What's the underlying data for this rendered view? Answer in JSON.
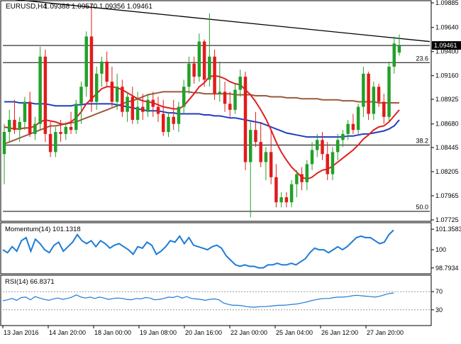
{
  "colors": {
    "bull": "#22a02a",
    "bear": "#e21b1b",
    "sma_fast": "#e02020",
    "sma_mid": "#1f3fbf",
    "sma_slow": "#9a5a3a",
    "indicator": "#1e7bd6",
    "grid": "#000000",
    "trend": "#000000"
  },
  "header": {
    "symbol": "EURUSD,H4",
    "ohlc": "1.09388 1.09570 1.09356 1.09461"
  },
  "chart_data": [
    {
      "type": "candlestick",
      "title": "EURUSD,H4  1.09388 1.09570 1.09356 1.09461",
      "ylim": [
        1.07725,
        1.09885
      ],
      "y_ticks": [
        "1.09885",
        "1.09640",
        "1.09400",
        "1.09160",
        "1.08925",
        "1.08680",
        "1.08445",
        "1.08205",
        "1.07965",
        "1.07725"
      ],
      "last_price": "1.09461",
      "x_labels": [
        "13 Jan 2016",
        "14 Jan 20:00",
        "18 Jan 00:00",
        "19 Jan 08:00",
        "20 Jan 16:00",
        "22 Jan 00:00",
        "25 Jan 04:00",
        "26 Jan 12:00",
        "27 Jan 20:00"
      ],
      "fib_levels": [
        {
          "label": "23.6",
          "value": 1.0929
        },
        {
          "label": "38.2",
          "value": 1.0847
        },
        {
          "label": "50.0",
          "value": 1.0781
        }
      ],
      "trendline": {
        "start": 1.0993,
        "end": 1.095
      },
      "horizontal_line": 1.09461,
      "candles": [
        {
          "o": 1.0838,
          "h": 1.0868,
          "l": 1.0808,
          "c": 1.086
        },
        {
          "o": 1.086,
          "h": 1.0882,
          "l": 1.085,
          "c": 1.0872
        },
        {
          "o": 1.0872,
          "h": 1.0892,
          "l": 1.0858,
          "c": 1.0862
        },
        {
          "o": 1.0862,
          "h": 1.0875,
          "l": 1.085,
          "c": 1.087
        },
        {
          "o": 1.087,
          "h": 1.0895,
          "l": 1.0862,
          "c": 1.089
        },
        {
          "o": 1.089,
          "h": 1.09,
          "l": 1.0855,
          "c": 1.0858
        },
        {
          "o": 1.0858,
          "h": 1.0875,
          "l": 1.0852,
          "c": 1.0868
        },
        {
          "o": 1.0868,
          "h": 1.0945,
          "l": 1.0862,
          "c": 1.0935
        },
        {
          "o": 1.0935,
          "h": 1.0942,
          "l": 1.085,
          "c": 1.0858
        },
        {
          "o": 1.0858,
          "h": 1.087,
          "l": 1.0835,
          "c": 1.084
        },
        {
          "o": 1.084,
          "h": 1.0865,
          "l": 1.0835,
          "c": 1.086
        },
        {
          "o": 1.086,
          "h": 1.0872,
          "l": 1.085,
          "c": 1.0858
        },
        {
          "o": 1.0858,
          "h": 1.087,
          "l": 1.0852,
          "c": 1.0865
        },
        {
          "o": 1.0865,
          "h": 1.088,
          "l": 1.0858,
          "c": 1.0862
        },
        {
          "o": 1.0862,
          "h": 1.0892,
          "l": 1.0858,
          "c": 1.0888
        },
        {
          "o": 1.0888,
          "h": 1.091,
          "l": 1.0868,
          "c": 1.0905
        },
        {
          "o": 1.0905,
          "h": 1.096,
          "l": 1.0895,
          "c": 1.0955
        },
        {
          "o": 1.0955,
          "h": 1.0988,
          "l": 1.088,
          "c": 1.089
        },
        {
          "o": 1.089,
          "h": 1.0925,
          "l": 1.0882,
          "c": 1.0918
        },
        {
          "o": 1.0918,
          "h": 1.0935,
          "l": 1.0905,
          "c": 1.093
        },
        {
          "o": 1.093,
          "h": 1.094,
          "l": 1.0905,
          "c": 1.091
        },
        {
          "o": 1.091,
          "h": 1.0925,
          "l": 1.0885,
          "c": 1.089
        },
        {
          "o": 1.089,
          "h": 1.0918,
          "l": 1.0882,
          "c": 1.0905
        },
        {
          "o": 1.0905,
          "h": 1.0912,
          "l": 1.0875,
          "c": 1.088
        },
        {
          "o": 1.088,
          "h": 1.09,
          "l": 1.087,
          "c": 1.0895
        },
        {
          "o": 1.0895,
          "h": 1.0905,
          "l": 1.0868,
          "c": 1.0872
        },
        {
          "o": 1.0872,
          "h": 1.09,
          "l": 1.0868,
          "c": 1.0885
        },
        {
          "o": 1.0885,
          "h": 1.0898,
          "l": 1.0872,
          "c": 1.088
        },
        {
          "o": 1.088,
          "h": 1.0898,
          "l": 1.0875,
          "c": 1.0892
        },
        {
          "o": 1.0892,
          "h": 1.09,
          "l": 1.0875,
          "c": 1.0885
        },
        {
          "o": 1.0885,
          "h": 1.0895,
          "l": 1.087,
          "c": 1.0878
        },
        {
          "o": 1.0878,
          "h": 1.0892,
          "l": 1.0856,
          "c": 1.086
        },
        {
          "o": 1.086,
          "h": 1.088,
          "l": 1.0855,
          "c": 1.0875
        },
        {
          "o": 1.0875,
          "h": 1.0892,
          "l": 1.0862,
          "c": 1.0868
        },
        {
          "o": 1.0868,
          "h": 1.089,
          "l": 1.086,
          "c": 1.0885
        },
        {
          "o": 1.0885,
          "h": 1.0912,
          "l": 1.0878,
          "c": 1.0905
        },
        {
          "o": 1.0905,
          "h": 1.0935,
          "l": 1.0898,
          "c": 1.0928
        },
        {
          "o": 1.0928,
          "h": 1.0935,
          "l": 1.0908,
          "c": 1.0915
        },
        {
          "o": 1.0915,
          "h": 1.0958,
          "l": 1.091,
          "c": 1.095
        },
        {
          "o": 1.095,
          "h": 1.0952,
          "l": 1.0905,
          "c": 1.0912
        },
        {
          "o": 1.0912,
          "h": 1.0978,
          "l": 1.0905,
          "c": 1.0935
        },
        {
          "o": 1.0935,
          "h": 1.0942,
          "l": 1.0892,
          "c": 1.0898
        },
        {
          "o": 1.0898,
          "h": 1.093,
          "l": 1.089,
          "c": 1.09
        },
        {
          "o": 1.09,
          "h": 1.091,
          "l": 1.088,
          "c": 1.0888
        },
        {
          "o": 1.0888,
          "h": 1.09,
          "l": 1.0875,
          "c": 1.0882
        },
        {
          "o": 1.0882,
          "h": 1.0908,
          "l": 1.0878,
          "c": 1.0902
        },
        {
          "o": 1.0902,
          "h": 1.0922,
          "l": 1.0895,
          "c": 1.0915
        },
        {
          "o": 1.0915,
          "h": 1.092,
          "l": 1.0822,
          "c": 1.083
        },
        {
          "o": 1.083,
          "h": 1.087,
          "l": 1.0775,
          "c": 1.0862
        },
        {
          "o": 1.0862,
          "h": 1.088,
          "l": 1.0845,
          "c": 1.085
        },
        {
          "o": 1.085,
          "h": 1.087,
          "l": 1.0825,
          "c": 1.083
        },
        {
          "o": 1.083,
          "h": 1.0845,
          "l": 1.0812,
          "c": 1.084
        },
        {
          "o": 1.084,
          "h": 1.0862,
          "l": 1.0808,
          "c": 1.0815
        },
        {
          "o": 1.0815,
          "h": 1.0828,
          "l": 1.0785,
          "c": 1.079
        },
        {
          "o": 1.079,
          "h": 1.08,
          "l": 1.0785,
          "c": 1.0795
        },
        {
          "o": 1.0795,
          "h": 1.08,
          "l": 1.0785,
          "c": 1.079
        },
        {
          "o": 1.079,
          "h": 1.0812,
          "l": 1.0785,
          "c": 1.0808
        },
        {
          "o": 1.0808,
          "h": 1.0822,
          "l": 1.0795,
          "c": 1.0818
        },
        {
          "o": 1.0818,
          "h": 1.0825,
          "l": 1.0802,
          "c": 1.081
        },
        {
          "o": 1.081,
          "h": 1.0832,
          "l": 1.0802,
          "c": 1.0828
        },
        {
          "o": 1.0828,
          "h": 1.085,
          "l": 1.0822,
          "c": 1.0842
        },
        {
          "o": 1.0842,
          "h": 1.0858,
          "l": 1.0835,
          "c": 1.0852
        },
        {
          "o": 1.0852,
          "h": 1.086,
          "l": 1.0832,
          "c": 1.0838
        },
        {
          "o": 1.0838,
          "h": 1.085,
          "l": 1.0812,
          "c": 1.0818
        },
        {
          "o": 1.0818,
          "h": 1.0845,
          "l": 1.0812,
          "c": 1.084
        },
        {
          "o": 1.084,
          "h": 1.0858,
          "l": 1.0832,
          "c": 1.0852
        },
        {
          "o": 1.0852,
          "h": 1.0862,
          "l": 1.0845,
          "c": 1.0858
        },
        {
          "o": 1.0858,
          "h": 1.0872,
          "l": 1.0852,
          "c": 1.0868
        },
        {
          "o": 1.0868,
          "h": 1.0878,
          "l": 1.0858,
          "c": 1.0862
        },
        {
          "o": 1.0862,
          "h": 1.0888,
          "l": 1.0858,
          "c": 1.0885
        },
        {
          "o": 1.0885,
          "h": 1.0925,
          "l": 1.0875,
          "c": 1.0918
        },
        {
          "o": 1.0918,
          "h": 1.092,
          "l": 1.0872,
          "c": 1.0878
        },
        {
          "o": 1.0878,
          "h": 1.091,
          "l": 1.0872,
          "c": 1.0905
        },
        {
          "o": 1.0905,
          "h": 1.0908,
          "l": 1.0885,
          "c": 1.089
        },
        {
          "o": 1.089,
          "h": 1.0898,
          "l": 1.0868,
          "c": 1.0875
        },
        {
          "o": 1.0875,
          "h": 1.093,
          "l": 1.087,
          "c": 1.0925
        },
        {
          "o": 1.0925,
          "h": 1.0955,
          "l": 1.0918,
          "c": 1.0948
        },
        {
          "o": 1.0939,
          "h": 1.0957,
          "l": 1.0936,
          "c": 1.0946
        }
      ],
      "sma_fast": [
        1.0865,
        1.0864,
        1.0863,
        1.0863,
        1.0864,
        1.0864,
        1.0866,
        1.087,
        1.0872,
        1.0871,
        1.087,
        1.0868,
        1.0868,
        1.087,
        1.0874,
        1.088,
        1.0888,
        1.0893,
        1.0898,
        1.0903,
        1.0905,
        1.0905,
        1.0904,
        1.0902,
        1.0899,
        1.0896,
        1.0893,
        1.0891,
        1.089,
        1.0889,
        1.0887,
        1.0885,
        1.0884,
        1.0883,
        1.0883,
        1.0886,
        1.0892,
        1.0898,
        1.0905,
        1.0909,
        1.0915,
        1.0916,
        1.0915,
        1.0913,
        1.091,
        1.0908,
        1.0907,
        1.0902,
        1.0897,
        1.089,
        1.0882,
        1.0873,
        1.0862,
        1.085,
        1.084,
        1.0832,
        1.0825,
        1.082,
        1.0815,
        1.0813,
        1.0815,
        1.0819,
        1.0822,
        1.0823,
        1.0826,
        1.083,
        1.0834,
        1.0838,
        1.0842,
        1.0847,
        1.0853,
        1.0857,
        1.0862,
        1.0865,
        1.0866,
        1.087,
        1.0876,
        1.0882
      ],
      "sma_mid": [
        1.089,
        1.089,
        1.089,
        1.0889,
        1.0889,
        1.0889,
        1.0888,
        1.0888,
        1.0888,
        1.0887,
        1.0886,
        1.0886,
        1.0886,
        1.0886,
        1.0887,
        1.0887,
        1.0888,
        1.0888,
        1.0888,
        1.0888,
        1.0888,
        1.0888,
        1.0887,
        1.0886,
        1.0885,
        1.0884,
        1.0883,
        1.0882,
        1.0881,
        1.0881,
        1.0881,
        1.088,
        1.0879,
        1.0879,
        1.0878,
        1.0878,
        1.0878,
        1.0878,
        1.0878,
        1.0877,
        1.0877,
        1.0876,
        1.0876,
        1.0875,
        1.0874,
        1.0874,
        1.0873,
        1.0872,
        1.0871,
        1.087,
        1.0869,
        1.0867,
        1.0865,
        1.0863,
        1.0861,
        1.0859,
        1.0858,
        1.0857,
        1.0856,
        1.0855,
        1.0855,
        1.0855,
        1.0855,
        1.0855,
        1.0855,
        1.0855,
        1.0855,
        1.0856,
        1.0856,
        1.0857,
        1.0858,
        1.0858,
        1.0859,
        1.086,
        1.0861,
        1.0863,
        1.0866,
        1.0872
      ],
      "sma_slow": [
        1.0848,
        1.085,
        1.0852,
        1.0854,
        1.0856,
        1.0858,
        1.086,
        1.0862,
        1.0864,
        1.0866,
        1.0866,
        1.0867,
        1.0868,
        1.0869,
        1.087,
        1.0872,
        1.0874,
        1.0876,
        1.0878,
        1.088,
        1.0882,
        1.0884,
        1.0886,
        1.0888,
        1.089,
        1.0891,
        1.0893,
        1.0895,
        1.0897,
        1.0898,
        1.0899,
        1.09,
        1.09,
        1.09,
        1.09,
        1.09,
        1.09,
        1.0899,
        1.0899,
        1.0898,
        1.0898,
        1.0898,
        1.0898,
        1.0898,
        1.0898,
        1.0897,
        1.0897,
        1.0897,
        1.0897,
        1.0896,
        1.0896,
        1.0896,
        1.0895,
        1.0895,
        1.0895,
        1.0894,
        1.0894,
        1.0894,
        1.0893,
        1.0893,
        1.0893,
        1.0893,
        1.0892,
        1.0892,
        1.0892,
        1.0892,
        1.0891,
        1.0891,
        1.0891,
        1.089,
        1.089,
        1.089,
        1.089,
        1.0889,
        1.0889,
        1.0889,
        1.0889,
        1.0889
      ]
    },
    {
      "type": "line",
      "title": "Momentum(14) 101.1318",
      "ylim": [
        98.5,
        101.6
      ],
      "y_ticks": [
        "101.3583",
        "100",
        "98.7934"
      ],
      "reference": 100,
      "values": [
        100.0,
        99.8,
        100.2,
        99.9,
        100.6,
        100.8,
        99.9,
        100.7,
        100.4,
        100.0,
        99.8,
        100.3,
        100.5,
        99.9,
        100.2,
        100.5,
        101.0,
        100.6,
        100.4,
        100.6,
        100.2,
        100.6,
        100.4,
        100.1,
        100.3,
        100.4,
        100.2,
        100.0,
        99.7,
        100.2,
        100.1,
        100.5,
        100.3,
        99.7,
        99.9,
        100.2,
        100.6,
        100.5,
        100.9,
        100.4,
        100.8,
        100.3,
        100.2,
        100.1,
        100.0,
        100.2,
        100.3,
        100.1,
        99.6,
        99.3,
        99.0,
        98.9,
        99.0,
        98.9,
        98.9,
        98.8,
        98.8,
        99.0,
        99.0,
        99.1,
        99.0,
        99.0,
        99.1,
        99.0,
        99.2,
        99.4,
        99.8,
        100.1,
        100.0,
        100.0,
        99.8,
        100.0,
        100.2,
        100.0,
        100.2,
        100.5,
        100.8,
        100.9,
        100.8,
        100.8,
        100.6,
        100.4,
        100.5,
        101.0,
        101.3
      ]
    },
    {
      "type": "line",
      "title": "RSI(14) 66.8371",
      "ylim": [
        0,
        100
      ],
      "y_ticks": [
        "70",
        "30"
      ],
      "values": [
        50,
        52,
        55,
        51,
        57,
        58,
        52,
        59,
        56,
        53,
        51,
        54,
        56,
        53,
        55,
        58,
        63,
        58,
        56,
        58,
        55,
        58,
        56,
        53,
        55,
        56,
        55,
        53,
        52,
        55,
        54,
        57,
        56,
        52,
        53,
        55,
        58,
        57,
        60,
        56,
        59,
        55,
        54,
        53,
        51,
        53,
        54,
        52,
        45,
        42,
        40,
        40,
        39,
        37,
        36,
        36,
        37,
        37,
        38,
        39,
        40,
        40,
        41,
        42,
        43,
        45,
        47,
        50,
        52,
        54,
        55,
        55,
        57,
        58,
        58,
        59,
        61,
        62,
        61,
        60,
        59,
        58,
        60,
        63,
        66,
        67
      ]
    }
  ]
}
